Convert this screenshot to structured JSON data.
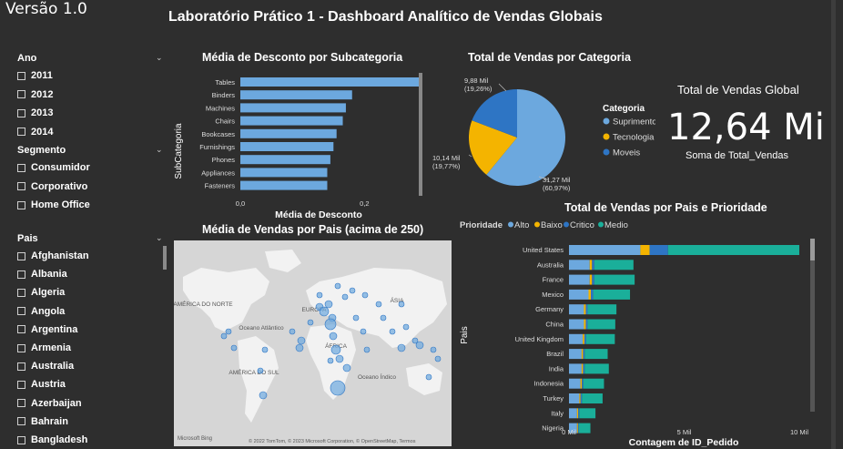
{
  "version": "Versão 1.0",
  "title": "Laboratório Prático 1 - Dashboard Analítico de Vendas Globais",
  "slicers": {
    "ano": {
      "title": "Ano",
      "items": [
        "2011",
        "2012",
        "2013",
        "2014"
      ]
    },
    "segmento": {
      "title": "Segmento",
      "items": [
        "Consumidor",
        "Corporativo",
        "Home Office"
      ]
    },
    "pais": {
      "title": "Pais",
      "items": [
        "Afghanistan",
        "Albania",
        "Algeria",
        "Angola",
        "Argentina",
        "Armenia",
        "Australia",
        "Austria",
        "Azerbaijan",
        "Bahrain",
        "Bangladesh"
      ]
    }
  },
  "discount_chart": {
    "title": "Média de Desconto por Subcategoria",
    "ylabel": "SubCategoria",
    "xlabel": "Média de Desconto",
    "xticks": [
      "0,0",
      "0,2"
    ],
    "chart_data": {
      "type": "bar",
      "categories": [
        "Tables",
        "Binders",
        "Machines",
        "Chairs",
        "Bookcases",
        "Furnishings",
        "Phones",
        "Appliances",
        "Fasteners"
      ],
      "values": [
        0.29,
        0.18,
        0.17,
        0.165,
        0.155,
        0.15,
        0.145,
        0.14,
        0.14
      ],
      "xlim": [
        0,
        0.3
      ]
    }
  },
  "pie_chart": {
    "title": "Total de Vendas por Categoria",
    "legend_title": "Categoria",
    "chart_data": {
      "type": "pie",
      "series": [
        {
          "name": "Suprimentos",
          "value_label": "31,27 Mil",
          "pct_label": "(60,97%)",
          "value": 60.97,
          "color": "#6ca8de"
        },
        {
          "name": "Tecnologia",
          "value_label": "10,14 Mil",
          "pct_label": "(19,77%)",
          "value": 19.77,
          "color": "#f4b400"
        },
        {
          "name": "Moveis",
          "value_label": "9,88 Mil",
          "pct_label": "(19,26%)",
          "value": 19.26,
          "color": "#2e75c4"
        }
      ]
    }
  },
  "kpi": {
    "title": "Total de Vendas Global",
    "value": "12,64 Mi",
    "subtitle": "Soma de Total_Vendas"
  },
  "map": {
    "title": "Média de Vendas por Pais (acima de 250)",
    "labels": [
      "AMÉRICA DO NORTE",
      "EUROPA",
      "ÁSIA",
      "Oceano Atlântico",
      "ÁFRICA",
      "AMÉRICA DO SUL",
      "Oceano Índico"
    ],
    "brand": "Microsoft Bing",
    "copyright": "© 2022 TomTom, © 2023 Microsoft Corporation, © OpenStreetMap, Termos"
  },
  "stacked_chart": {
    "title": "Total de Vendas por Pais e Prioridade",
    "legend_label": "Prioridade",
    "ylabel": "Pais",
    "xlabel": "Contagem de ID_Pedido",
    "xticks": [
      "0 Mil",
      "5 Mil",
      "10 Mil"
    ],
    "chart_data": {
      "type": "bar",
      "categories": [
        "United States",
        "Australia",
        "France",
        "Mexico",
        "Germany",
        "China",
        "United Kingdom",
        "Brazil",
        "India",
        "Indonesia",
        "Turkey",
        "Italy",
        "Nigeria"
      ],
      "series": [
        {
          "name": "Alto",
          "color": "#6ca8de",
          "values": [
            3.1,
            0.9,
            0.9,
            0.85,
            0.65,
            0.65,
            0.6,
            0.55,
            0.55,
            0.5,
            0.45,
            0.35,
            0.35
          ]
        },
        {
          "name": "Baixo",
          "color": "#f4b400",
          "values": [
            0.4,
            0.1,
            0.1,
            0.1,
            0.08,
            0.08,
            0.07,
            0.06,
            0.06,
            0.06,
            0.05,
            0.05,
            0.04
          ]
        },
        {
          "name": "Critico",
          "color": "#2e75c4",
          "values": [
            0.8,
            0.1,
            0.1,
            0.1,
            0.08,
            0.08,
            0.07,
            0.07,
            0.07,
            0.06,
            0.06,
            0.05,
            0.04
          ]
        },
        {
          "name": "Medio",
          "color": "#1aaf9a",
          "values": [
            5.7,
            1.7,
            1.75,
            1.6,
            1.25,
            1.2,
            1.25,
            1.0,
            1.05,
            0.9,
            0.9,
            0.7,
            0.5
          ]
        }
      ],
      "xlim": [
        0,
        10
      ]
    }
  }
}
